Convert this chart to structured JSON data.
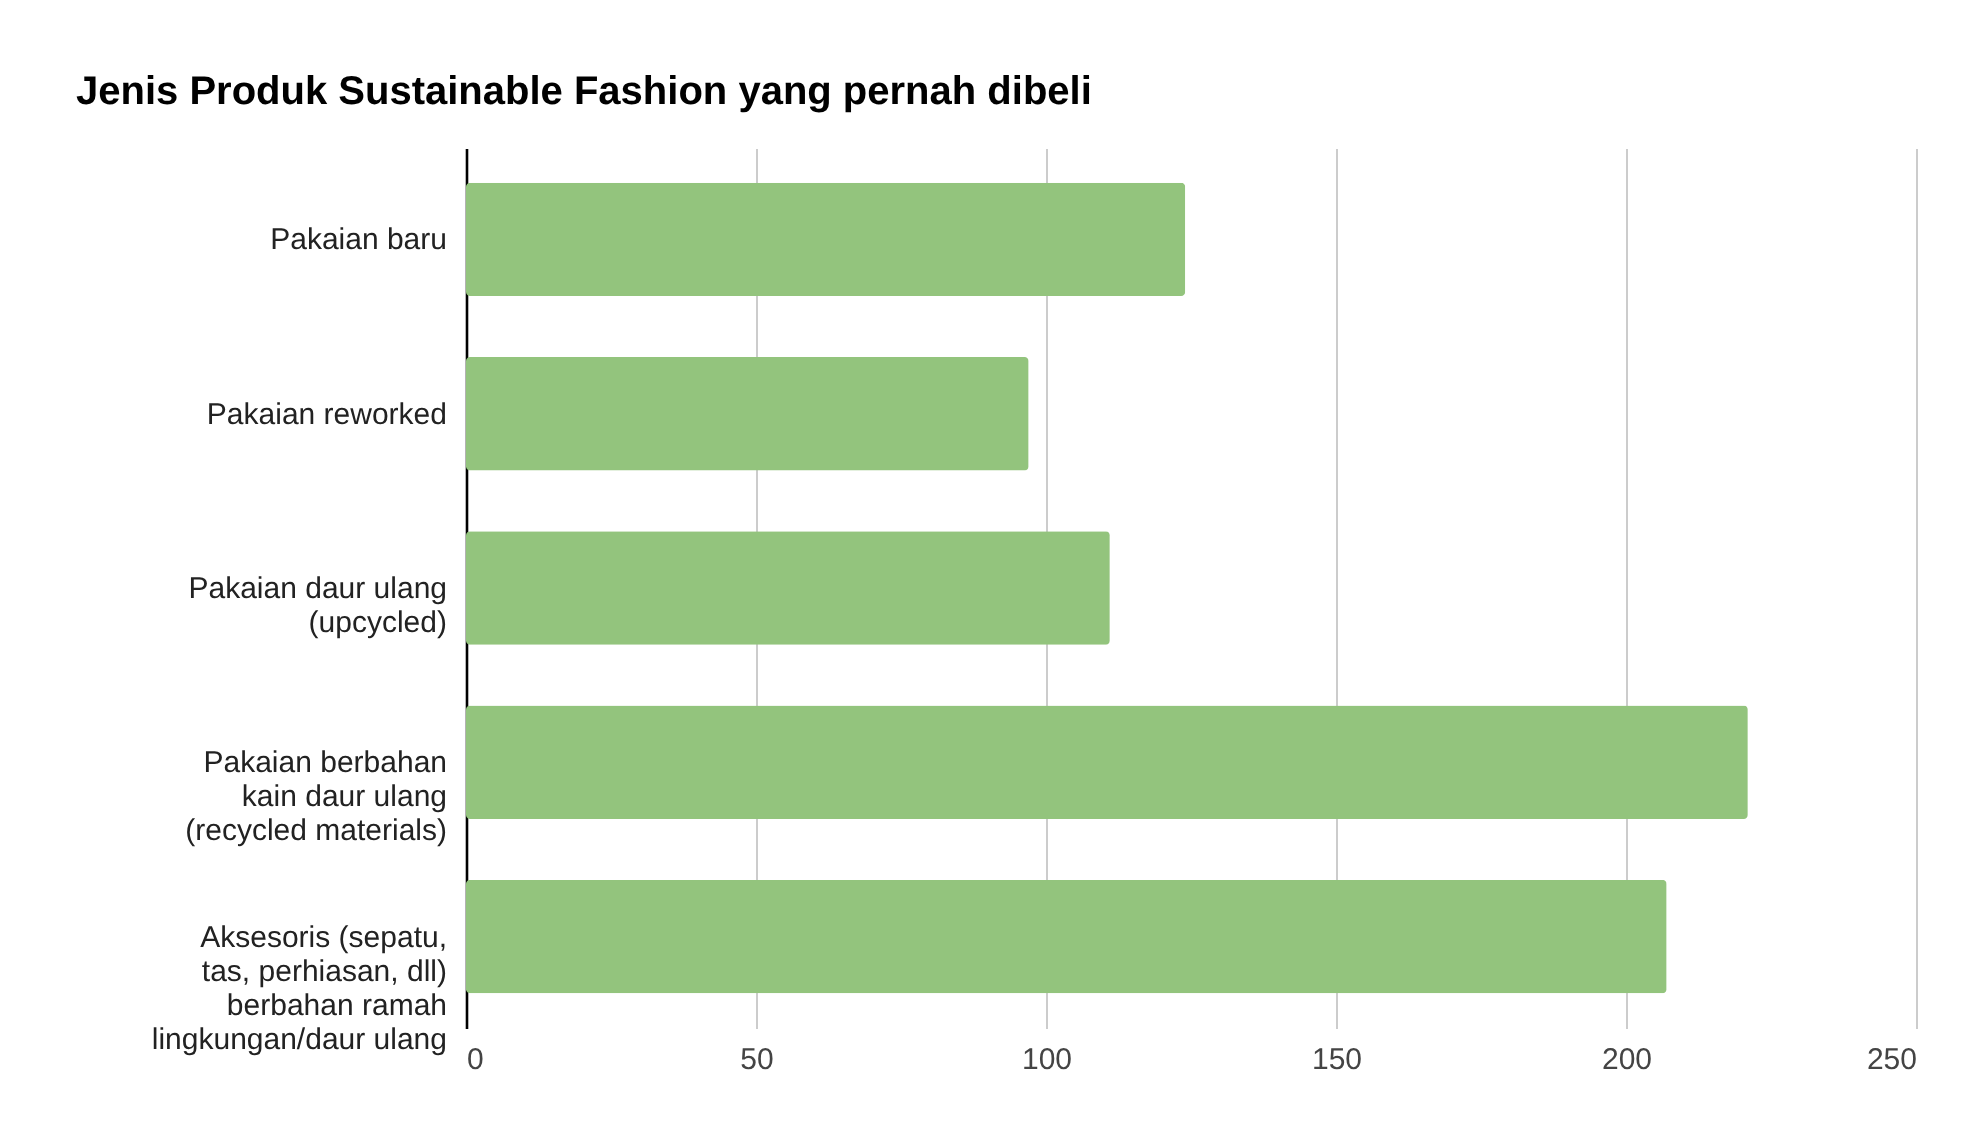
{
  "chart_data": {
    "type": "bar",
    "orientation": "horizontal",
    "title": "Jenis Produk Sustainable Fashion yang pernah dibeli",
    "categories": [
      "Pakaian baru",
      "Pakaian reworked",
      "Pakaian daur ulang (upcycled)",
      "Pakaian berbahan kain daur ulang (recycled materials)",
      "Aksesoris (sepatu, tas, perhiasan, dll) berbahan ramah lingkungan/daur ulang"
    ],
    "values": [
      124,
      97,
      111,
      221,
      207
    ],
    "color": "#93c47d",
    "xlim": [
      0,
      250
    ],
    "xticks": [
      0,
      50,
      100,
      150,
      200,
      250
    ],
    "grid": "x"
  }
}
